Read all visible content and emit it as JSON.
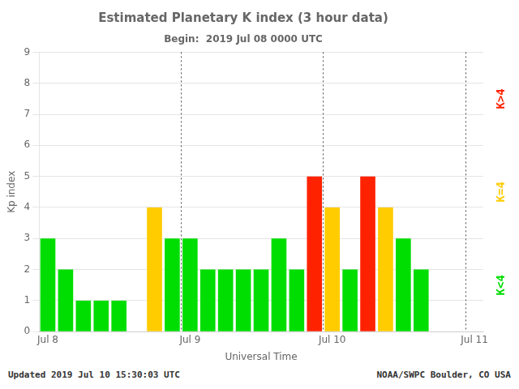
{
  "chart_data": {
    "type": "bar",
    "title": "Estimated Planetary K index (3 hour data)",
    "subtitle": "Begin:  2019 Jul 08 0000 UTC",
    "xlabel": "Universal Time",
    "ylabel": "Kp index",
    "categories": [
      "Jul 8",
      null,
      null,
      null,
      null,
      null,
      null,
      null,
      "Jul 9",
      null,
      null,
      null,
      null,
      null,
      null,
      null,
      "Jul 10",
      null,
      null,
      null,
      null,
      null,
      null,
      null,
      "Jul 11"
    ],
    "values": [
      3,
      2,
      1,
      1,
      1,
      0,
      4,
      3,
      3,
      2,
      2,
      2,
      2,
      3,
      2,
      5,
      4,
      2,
      5,
      4,
      3,
      2,
      null,
      null,
      null
    ],
    "colors": [
      "#00dd00",
      "#00dd00",
      "#00dd00",
      "#00dd00",
      "#00dd00",
      "#00dd00",
      "#ffcc00",
      "#00dd00",
      "#00dd00",
      "#00dd00",
      "#00dd00",
      "#00dd00",
      "#00dd00",
      "#00dd00",
      "#00dd00",
      "#ff2200",
      "#ffcc00",
      "#00dd00",
      "#ff2200",
      "#ffcc00",
      "#00dd00",
      "#00dd00",
      null,
      null,
      null
    ],
    "ylim": [
      0,
      9
    ],
    "yticks": [
      0,
      1,
      2,
      3,
      4,
      5,
      6,
      7,
      8,
      9
    ],
    "grid": true,
    "annotations": [
      {
        "text": "K>4",
        "color": "#ff2200"
      },
      {
        "text": "K=4",
        "color": "#ffcc00"
      },
      {
        "text": "K<4",
        "color": "#00dd00"
      },
      {
        "text": "Updated 2019 Jul 10 15:30:03 UTC"
      },
      {
        "text": "NOAA/SWPC Boulder, CO USA"
      }
    ]
  }
}
